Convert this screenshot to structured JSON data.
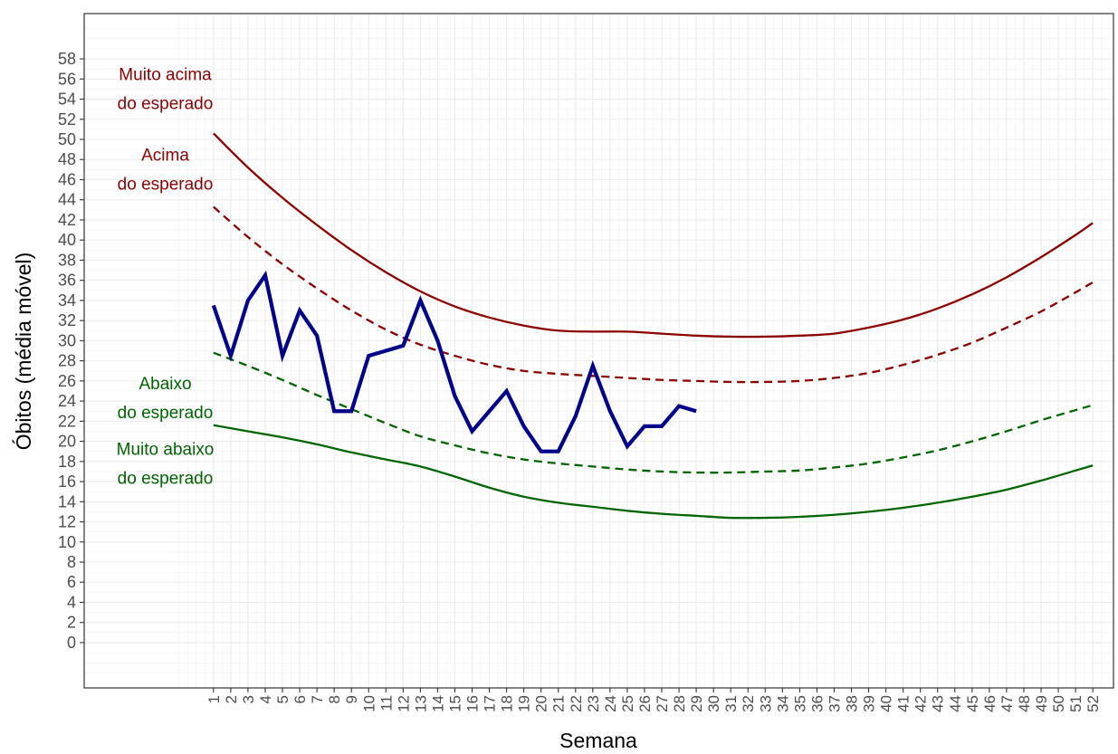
{
  "chart_data": {
    "type": "line",
    "xlabel": "Semana",
    "ylabel": "Óbitos (média móvel)",
    "xlim": [
      -6.5,
      53.2
    ],
    "ylim": [
      -4.5,
      62.5
    ],
    "grid": true,
    "x_ticks": [
      1,
      2,
      3,
      4,
      5,
      6,
      7,
      8,
      9,
      10,
      11,
      12,
      13,
      14,
      15,
      16,
      17,
      18,
      19,
      20,
      21,
      22,
      23,
      24,
      25,
      26,
      27,
      28,
      29,
      30,
      31,
      32,
      33,
      34,
      35,
      36,
      37,
      38,
      39,
      40,
      41,
      42,
      43,
      44,
      45,
      46,
      47,
      48,
      49,
      50,
      51,
      52
    ],
    "y_ticks": [
      0,
      2,
      4,
      6,
      8,
      10,
      12,
      14,
      16,
      18,
      20,
      22,
      24,
      26,
      28,
      30,
      32,
      34,
      36,
      38,
      40,
      42,
      44,
      46,
      48,
      50,
      52,
      54,
      56,
      58
    ],
    "x": [
      1,
      3,
      5,
      7,
      9,
      11,
      13,
      15,
      17,
      19,
      21,
      23,
      25,
      27,
      29,
      31,
      33,
      35,
      37,
      39,
      41,
      43,
      45,
      47,
      49,
      51,
      52
    ],
    "series": [
      {
        "role": "upper_limit_solid",
        "color": "#8b0000",
        "style": "solid",
        "values": [
          50.6,
          47.2,
          44.2,
          41.5,
          39.0,
          36.8,
          34.9,
          33.4,
          32.3,
          31.5,
          31.0,
          30.9,
          30.9,
          30.7,
          30.5,
          30.4,
          30.4,
          30.5,
          30.7,
          31.3,
          32.1,
          33.2,
          34.6,
          36.3,
          38.3,
          40.5,
          41.7
        ]
      },
      {
        "role": "upper_limit_dashed",
        "color": "#8b0000",
        "style": "dashed",
        "values": [
          43.3,
          40.3,
          37.6,
          35.2,
          33.0,
          31.1,
          29.6,
          28.5,
          27.6,
          27.0,
          26.7,
          26.5,
          26.3,
          26.1,
          26.0,
          25.9,
          25.9,
          26.0,
          26.3,
          26.8,
          27.6,
          28.6,
          29.8,
          31.3,
          32.9,
          34.8,
          35.8
        ]
      },
      {
        "role": "lower_limit_dashed",
        "color": "#006400",
        "style": "dashed",
        "values": [
          28.8,
          27.5,
          26.1,
          24.6,
          23.2,
          21.8,
          20.5,
          19.6,
          18.8,
          18.2,
          17.8,
          17.5,
          17.2,
          17.0,
          16.9,
          16.9,
          17.0,
          17.1,
          17.4,
          17.8,
          18.4,
          19.1,
          20.0,
          21.0,
          22.1,
          23.1,
          23.6
        ]
      },
      {
        "role": "lower_limit_solid",
        "color": "#006400",
        "style": "solid",
        "values": [
          21.6,
          21.0,
          20.4,
          19.7,
          18.9,
          18.2,
          17.5,
          16.5,
          15.4,
          14.5,
          13.9,
          13.5,
          13.1,
          12.8,
          12.6,
          12.4,
          12.4,
          12.5,
          12.7,
          13.0,
          13.4,
          13.9,
          14.5,
          15.2,
          16.1,
          17.1,
          17.6
        ]
      }
    ],
    "observed": {
      "role": "observed",
      "color": "#00008b",
      "x": [
        1,
        2,
        3,
        4,
        5,
        6,
        7,
        8,
        9,
        10,
        11,
        12,
        13,
        14,
        15,
        16,
        17,
        18,
        19,
        20,
        21,
        22,
        23,
        24,
        25,
        26,
        27,
        28,
        29
      ],
      "values": [
        33.5,
        28.5,
        34,
        36.5,
        28.5,
        33,
        30.5,
        23,
        23,
        28.5,
        29,
        29.5,
        34,
        30,
        24.5,
        21,
        23,
        25,
        21.5,
        19,
        19,
        22.5,
        27.5,
        23,
        19.5,
        21.5,
        21.5,
        23.5,
        23
      ]
    },
    "annotations": [
      {
        "lines": [
          "Muito acima",
          "do esperado"
        ],
        "color": "#8b0000",
        "x": -1.8,
        "y": 56.5
      },
      {
        "lines": [
          "Acima",
          "do esperado"
        ],
        "color": "#8b0000",
        "x": -1.8,
        "y": 48.5
      },
      {
        "lines": [
          "Abaixo",
          "do esperado"
        ],
        "color": "#006400",
        "x": -1.8,
        "y": 25.8
      },
      {
        "lines": [
          "Muito abaixo",
          "do esperado"
        ],
        "color": "#006400",
        "x": -1.8,
        "y": 19.3
      }
    ]
  }
}
